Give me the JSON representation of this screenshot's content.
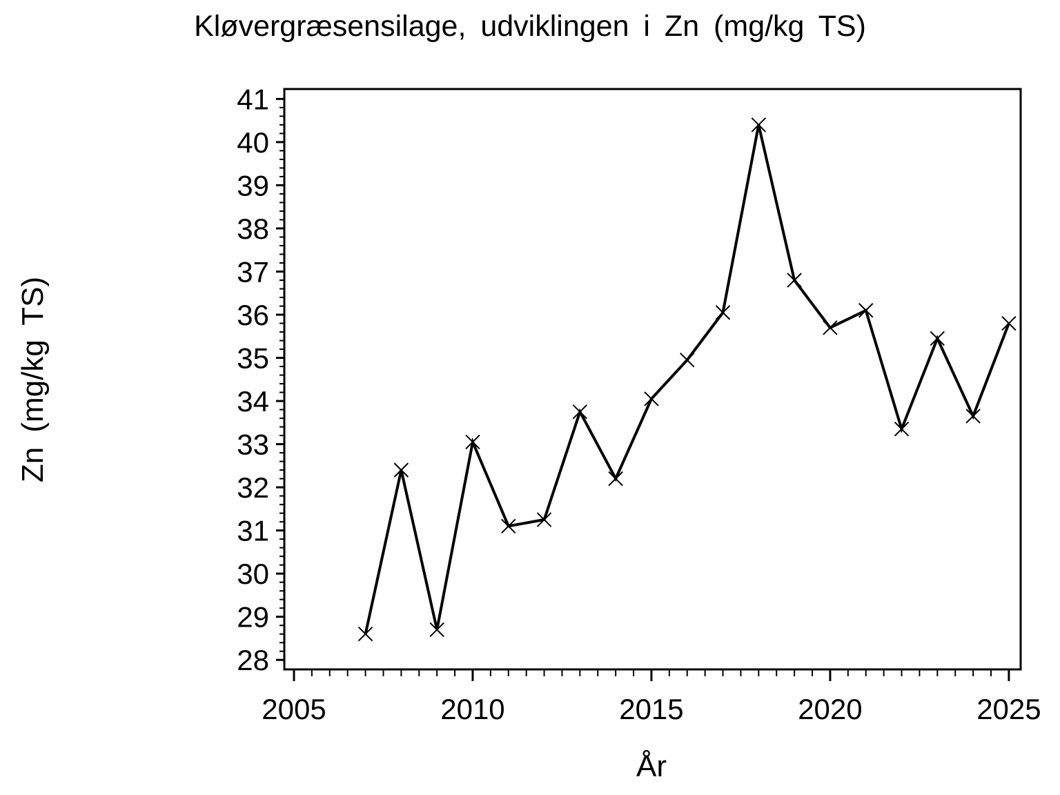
{
  "chart_data": {
    "type": "line",
    "title": "Kløvergræsensilage, udviklingen i Zn (mg/kg TS)",
    "xlabel": "År",
    "ylabel": "Zn (mg/kg TS)",
    "x": [
      2007,
      2008,
      2009,
      2010,
      2011,
      2012,
      2013,
      2014,
      2015,
      2016,
      2017,
      2018,
      2019,
      2020,
      2021,
      2022,
      2023,
      2024,
      2025
    ],
    "y": [
      28.6,
      32.4,
      28.7,
      33.05,
      31.1,
      31.25,
      33.75,
      32.2,
      34.05,
      34.95,
      36.05,
      40.4,
      36.8,
      35.7,
      36.1,
      33.35,
      35.45,
      33.65,
      35.8
    ],
    "series_name": "Zn (mg/kg TS)",
    "xlim": [
      2004.73,
      2025.33
    ],
    "ylim": [
      27.78,
      41.23
    ],
    "x_major_ticks": [
      2005,
      2010,
      2015,
      2020,
      2025
    ],
    "x_minor_step": 0.5,
    "y_major_ticks": [
      28,
      29,
      30,
      31,
      32,
      33,
      34,
      35,
      36,
      37,
      38,
      39,
      40,
      41
    ],
    "y_minor_step": 0.2,
    "grid": "off",
    "legend": "none",
    "marker": "x-cross",
    "line_color": "#000000",
    "marker_color": "#000000",
    "background_color": "#ffffff"
  }
}
